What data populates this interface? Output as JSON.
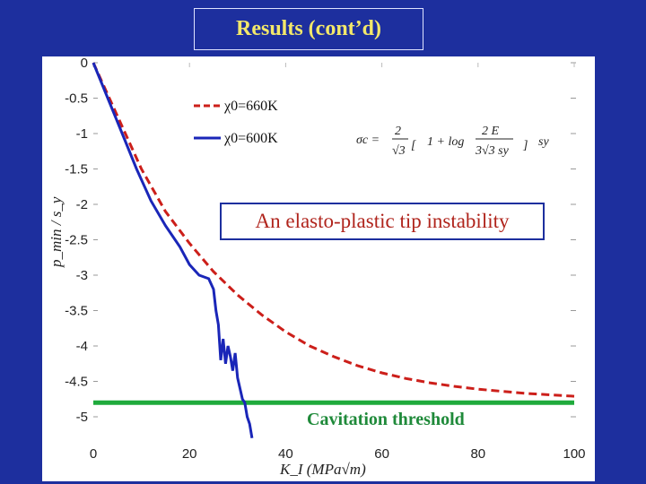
{
  "slide": {
    "title": "Results (cont’d)",
    "callout": "An elasto-plastic tip instability",
    "threshold_label": "Cavitation threshold"
  },
  "colors": {
    "background": "#1d2f9e",
    "title_text": "#f3e86a",
    "series_660K": "#cc1f1a",
    "series_600K": "#1a26b8",
    "threshold": "#1faa3c",
    "callout_text": "#b0241c"
  },
  "formula": {
    "lhs": "σc =",
    "frac_num": "2",
    "frac_den": "√3",
    "bracket_left": "[",
    "one_plus_log": "1 + log",
    "inner_num": "2 E",
    "inner_den": "3√3 sy",
    "bracket_right": "]",
    "factor": "sy"
  },
  "chart_data": {
    "type": "line",
    "xlabel": "K_I (MPa√m)",
    "ylabel": "p_min / s_y",
    "xlim": [
      0,
      100
    ],
    "ylim": [
      -5.3,
      0
    ],
    "xticks": [
      "0",
      "20",
      "40",
      "60",
      "80",
      "100"
    ],
    "yticks": [
      "0",
      "-0.5",
      "-1",
      "-1.5",
      "-2",
      "-2.5",
      "-3",
      "-3.5",
      "-4",
      "-4.5",
      "-5"
    ],
    "legend": {
      "placement": "top-left"
    },
    "series": [
      {
        "name": "χ0=660K",
        "style": "dashed",
        "x": [
          0,
          5,
          10,
          15,
          20,
          25,
          30,
          35,
          40,
          45,
          50,
          55,
          60,
          65,
          70,
          75,
          80,
          85,
          90,
          95,
          100
        ],
        "y": [
          0,
          -0.75,
          -1.5,
          -2.1,
          -2.55,
          -2.95,
          -3.28,
          -3.56,
          -3.8,
          -4.0,
          -4.15,
          -4.28,
          -4.38,
          -4.46,
          -4.52,
          -4.57,
          -4.61,
          -4.64,
          -4.67,
          -4.69,
          -4.71
        ]
      },
      {
        "name": "χ0=600K",
        "style": "solid",
        "x": [
          0,
          3,
          6,
          9,
          12,
          15,
          18,
          20,
          22,
          24,
          25,
          25.5,
          26,
          26.5,
          27,
          27.5,
          28,
          28.5,
          29,
          29.5,
          30,
          30.5,
          31,
          31.5,
          32,
          32.5,
          33
        ],
        "y": [
          0,
          -0.5,
          -1.0,
          -1.5,
          -1.95,
          -2.3,
          -2.6,
          -2.85,
          -3.0,
          -3.05,
          -3.2,
          -3.5,
          -3.7,
          -4.2,
          -3.9,
          -4.25,
          -4.0,
          -4.15,
          -4.35,
          -4.1,
          -4.45,
          -4.6,
          -4.75,
          -4.8,
          -5.0,
          -5.1,
          -5.3
        ]
      }
    ],
    "threshold": {
      "label": "Cavitation threshold",
      "y": -4.8
    }
  }
}
